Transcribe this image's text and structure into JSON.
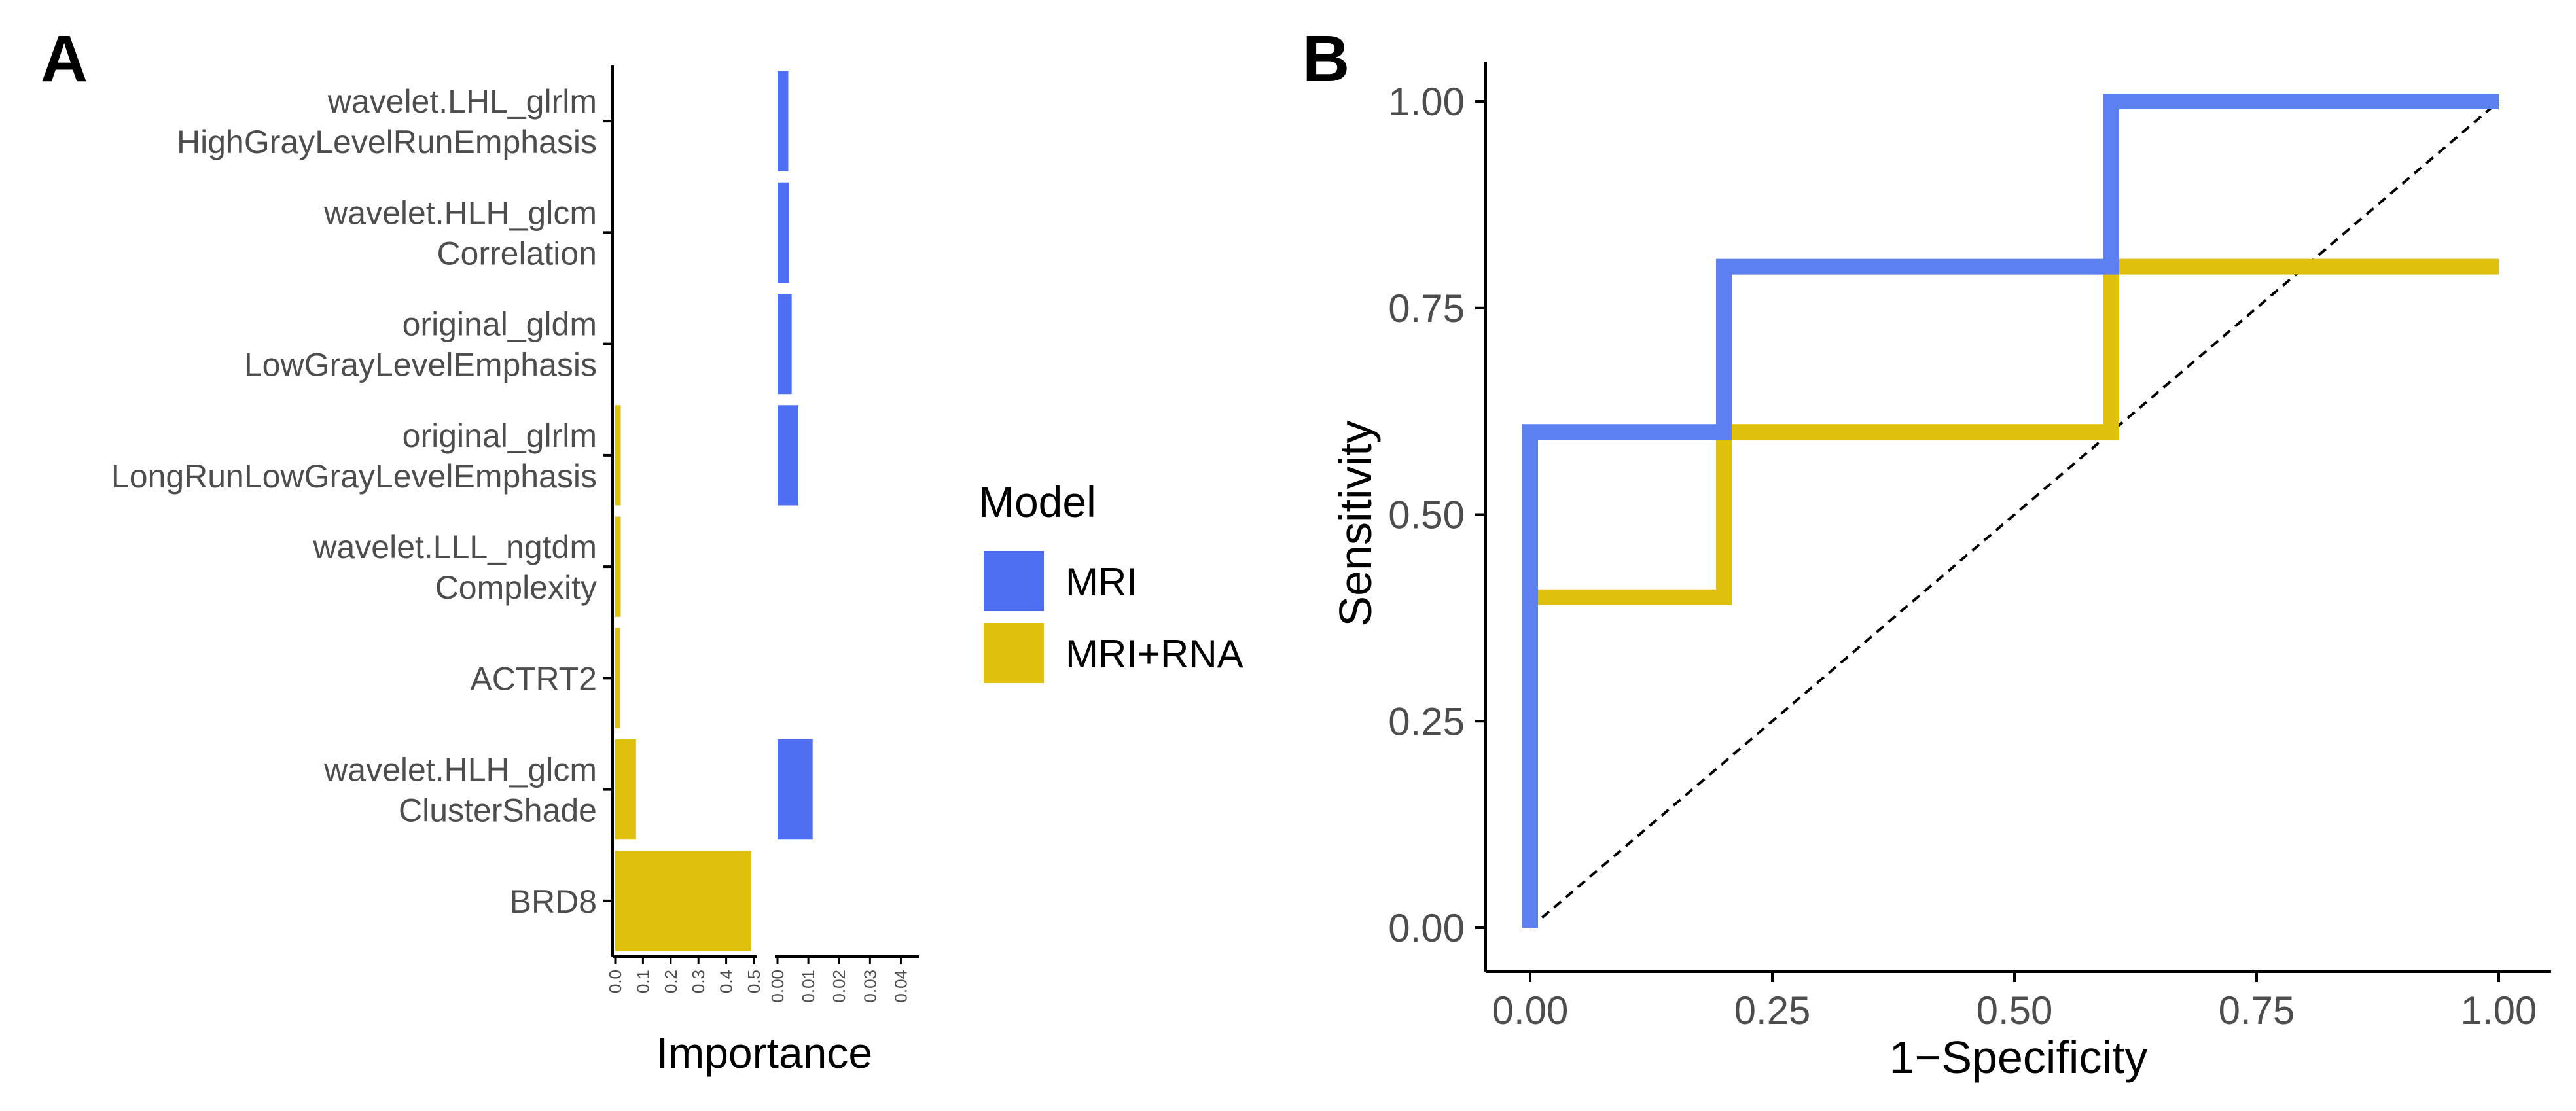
{
  "panels": {
    "a": "A",
    "b": "B"
  },
  "legend": {
    "title": "Model",
    "items": [
      {
        "label": "MRI",
        "color": "#4f6ff2"
      },
      {
        "label": "MRI+RNA",
        "color": "#dfc00c"
      }
    ]
  },
  "chart_data": [
    {
      "type": "bar",
      "orientation": "horizontal",
      "title": "",
      "xlabel": "Importance",
      "ylabel": "",
      "categories": [
        [
          "wavelet.LHL_glrlm",
          "HighGrayLevelRunEmphasis"
        ],
        [
          "wavelet.HLH_glcm",
          "Correlation"
        ],
        [
          "original_gldm",
          "LowGrayLevelEmphasis"
        ],
        [
          "original_glrlm",
          "LongRunLowGrayLevelEmphasis"
        ],
        [
          "wavelet.LLL_ngtdm",
          "Complexity"
        ],
        [
          "ACTRT2"
        ],
        [
          "wavelet.HLH_glcm",
          "ClusterShade"
        ],
        [
          "BRD8"
        ]
      ],
      "facets": [
        {
          "name": "MRI+RNA",
          "color": "#dfc00c",
          "xlim": [
            0,
            0.5
          ],
          "ticks": [
            "0.0",
            "0.1",
            "0.2",
            "0.3",
            "0.4",
            "0.5"
          ],
          "values": [
            null,
            null,
            null,
            0.02,
            0.02,
            0.018,
            0.075,
            0.49
          ]
        },
        {
          "name": "MRI",
          "color": "#4f6ff2",
          "xlim": [
            0,
            0.045
          ],
          "ticks": [
            "0.00",
            "0.01",
            "0.02",
            "0.03",
            "0.04"
          ],
          "values": [
            0.0035,
            0.0038,
            0.0046,
            0.0068,
            null,
            null,
            0.0114,
            null
          ]
        }
      ]
    },
    {
      "type": "line",
      "title": "",
      "xlabel": "1−Specificity",
      "ylabel": "Sensitivity",
      "xlim": [
        0,
        1
      ],
      "ylim": [
        0,
        1
      ],
      "xticks": [
        "0.00",
        "0.25",
        "0.50",
        "0.75",
        "1.00"
      ],
      "yticks": [
        "0.00",
        "0.25",
        "0.50",
        "0.75",
        "1.00"
      ],
      "series": [
        {
          "name": "MRI+RNA",
          "color": "#dfc00c",
          "x": [
            0,
            0,
            0.2,
            0.2,
            0.6,
            0.6,
            1.0
          ],
          "y": [
            0,
            0.4,
            0.4,
            0.6,
            0.6,
            0.8,
            0.8
          ]
        },
        {
          "name": "MRI",
          "color": "#5d80f0",
          "x": [
            0,
            0,
            0.2,
            0.2,
            0.6,
            0.6,
            1.0
          ],
          "y": [
            0,
            0.6,
            0.6,
            0.8,
            0.8,
            1.0,
            1.0
          ]
        }
      ],
      "reference": {
        "name": "chance",
        "x": [
          0,
          1
        ],
        "y": [
          0,
          1
        ]
      }
    }
  ]
}
